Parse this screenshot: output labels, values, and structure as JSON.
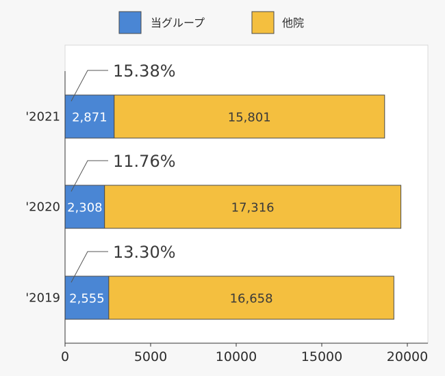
{
  "chart_data": {
    "type": "bar",
    "orientation": "horizontal",
    "stacked": true,
    "categories": [
      "'2021",
      "'2020",
      "'2019"
    ],
    "series": [
      {
        "name": "当グループ",
        "color": "#4a86d4",
        "values": [
          2871,
          2308,
          2555
        ],
        "labels": [
          "2,871",
          "2,308",
          "2,555"
        ]
      },
      {
        "name": "他院",
        "color": "#f4bf3f",
        "values": [
          15801,
          17316,
          16658
        ],
        "labels": [
          "15,801",
          "17,316",
          "16,658"
        ]
      }
    ],
    "annotations": [
      "15.38%",
      "11.76%",
      "13.30%"
    ],
    "xlim": [
      0,
      21000
    ],
    "xticks": [
      0,
      5000,
      10000,
      15000,
      20000
    ],
    "xtick_labels": [
      "0",
      "5000",
      "10000",
      "15000",
      "20000"
    ],
    "legend_position": "top",
    "grid": false
  }
}
